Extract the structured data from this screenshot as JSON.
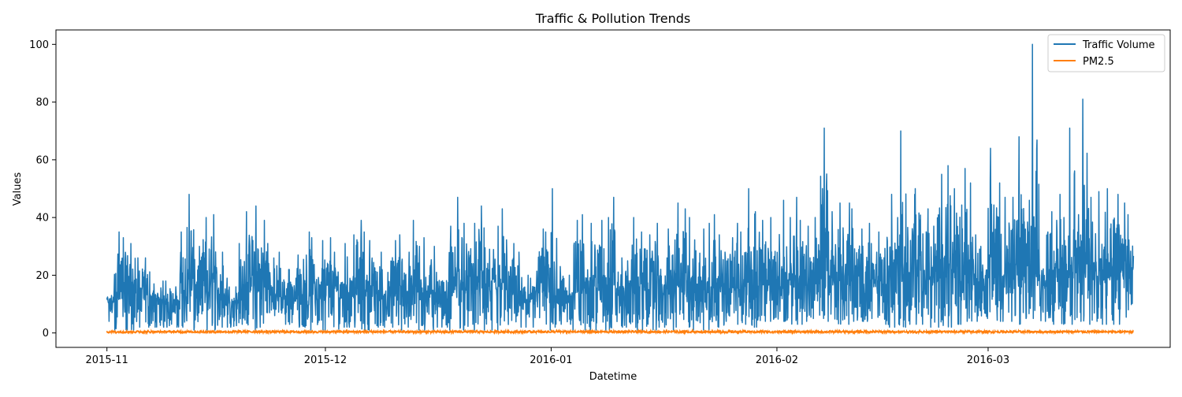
{
  "chart_data": {
    "type": "line",
    "title": "Traffic & Pollution Trends",
    "xlabel": "Datetime",
    "ylabel": "Values",
    "x_range": [
      "2015-10-25",
      "2016-03-26"
    ],
    "ylim": [
      -5,
      105
    ],
    "x_ticks": [
      {
        "date": "2015-11-01",
        "label": "2015-11"
      },
      {
        "date": "2015-12-01",
        "label": "2015-12"
      },
      {
        "date": "2016-01-01",
        "label": "2016-01"
      },
      {
        "date": "2016-02-01",
        "label": "2016-02"
      },
      {
        "date": "2016-03-01",
        "label": "2016-03"
      }
    ],
    "y_ticks": [
      0,
      20,
      40,
      60,
      80,
      100
    ],
    "grid": false,
    "legend_position": "top-right",
    "series": [
      {
        "name": "Traffic Volume",
        "color": "#1f77b4",
        "x": [
          "2015-11-01",
          "2015-11-02",
          "2015-11-03",
          "2015-11-04",
          "2015-11-05",
          "2015-11-06",
          "2015-11-07",
          "2015-11-08",
          "2015-11-09",
          "2015-11-10",
          "2015-11-11",
          "2015-11-12",
          "2015-11-13",
          "2015-11-14",
          "2015-11-15",
          "2015-11-16",
          "2015-11-17",
          "2015-11-18",
          "2015-11-19",
          "2015-11-20",
          "2015-11-21",
          "2015-11-22",
          "2015-11-23",
          "2015-11-24",
          "2015-11-25",
          "2015-11-26",
          "2015-11-27",
          "2015-11-28",
          "2015-11-29",
          "2015-11-30",
          "2015-12-01",
          "2015-12-02",
          "2015-12-03",
          "2015-12-04",
          "2015-12-05",
          "2015-12-06",
          "2015-12-07",
          "2015-12-08",
          "2015-12-09",
          "2015-12-10",
          "2015-12-11",
          "2015-12-12",
          "2015-12-13",
          "2015-12-14",
          "2015-12-15",
          "2015-12-16",
          "2015-12-17",
          "2015-12-18",
          "2015-12-19",
          "2015-12-20",
          "2015-12-21",
          "2015-12-22",
          "2015-12-23",
          "2015-12-24",
          "2015-12-25",
          "2015-12-26",
          "2015-12-27",
          "2015-12-28",
          "2015-12-29",
          "2015-12-30",
          "2015-12-31",
          "2016-01-01",
          "2016-01-02",
          "2016-01-03",
          "2016-01-04",
          "2016-01-05",
          "2016-01-06",
          "2016-01-07",
          "2016-01-08",
          "2016-01-09",
          "2016-01-10",
          "2016-01-11",
          "2016-01-12",
          "2016-01-13",
          "2016-01-14",
          "2016-01-15",
          "2016-01-16",
          "2016-01-17",
          "2016-01-18",
          "2016-01-19",
          "2016-01-20",
          "2016-01-21",
          "2016-01-22",
          "2016-01-23",
          "2016-01-24",
          "2016-01-25",
          "2016-01-26",
          "2016-01-27",
          "2016-01-28",
          "2016-01-29",
          "2016-01-30",
          "2016-01-31",
          "2016-02-01",
          "2016-02-02",
          "2016-02-03",
          "2016-02-04",
          "2016-02-05",
          "2016-02-06",
          "2016-02-07",
          "2016-02-08",
          "2016-02-09",
          "2016-02-10",
          "2016-02-11",
          "2016-02-12",
          "2016-02-13",
          "2016-02-14",
          "2016-02-15",
          "2016-02-16",
          "2016-02-17",
          "2016-02-18",
          "2016-02-19",
          "2016-02-20",
          "2016-02-21",
          "2016-02-22",
          "2016-02-23",
          "2016-02-24",
          "2016-02-25",
          "2016-02-26",
          "2016-02-27",
          "2016-02-28",
          "2016-02-29",
          "2016-03-01",
          "2016-03-02",
          "2016-03-03",
          "2016-03-04",
          "2016-03-05",
          "2016-03-06",
          "2016-03-07",
          "2016-03-08",
          "2016-03-09",
          "2016-03-10",
          "2016-03-11",
          "2016-03-12",
          "2016-03-13",
          "2016-03-14",
          "2016-03-15",
          "2016-03-16",
          "2016-03-17",
          "2016-03-18",
          "2016-03-19",
          "2016-03-20"
        ],
        "daily_max": [
          13,
          35,
          33,
          31,
          26,
          26,
          17,
          18,
          18,
          16,
          35,
          48,
          30,
          40,
          41,
          28,
          19,
          16,
          31,
          42,
          44,
          39,
          31,
          28,
          22,
          22,
          27,
          35,
          33,
          32,
          33,
          28,
          31,
          34,
          39,
          35,
          32,
          28,
          21,
          32,
          34,
          28,
          39,
          33,
          30,
          21,
          21,
          37,
          47,
          38,
          38,
          44,
          29,
          37,
          43,
          31,
          28,
          20,
          19,
          36,
          35,
          50,
          23,
          20,
          39,
          41,
          38,
          39,
          40,
          47,
          26,
          25,
          40,
          35,
          34,
          38,
          26,
          36,
          45,
          43,
          40,
          36,
          38,
          41,
          34,
          33,
          38,
          35,
          50,
          42,
          39,
          40,
          46,
          40,
          47,
          39,
          37,
          40,
          71,
          42,
          45,
          45,
          43,
          36,
          38,
          28,
          35,
          48,
          40,
          70,
          48,
          50,
          43,
          37,
          55,
          58,
          50,
          57,
          52,
          34,
          30,
          64,
          52,
          47,
          47,
          68,
          46,
          100,
          30,
          42,
          48,
          40,
          71,
          41,
          81,
          47,
          49,
          50,
          48,
          45,
          41
        ],
        "daily_min": [
          4,
          1,
          1,
          1,
          2,
          2,
          2,
          2,
          2,
          2,
          2,
          1,
          2,
          1,
          1,
          2,
          2,
          2,
          3,
          2,
          1,
          2,
          7,
          6,
          3,
          3,
          2,
          2,
          1,
          1,
          2,
          1,
          2,
          2,
          2,
          1,
          1,
          2,
          2,
          2,
          1,
          2,
          1,
          1,
          1,
          2,
          2,
          1,
          1,
          1,
          1,
          1,
          1,
          1,
          1,
          1,
          2,
          2,
          2,
          2,
          1,
          2,
          3,
          3,
          1,
          1,
          1,
          1,
          1,
          1,
          2,
          2,
          1,
          1,
          1,
          1,
          2,
          1,
          2,
          2,
          1,
          1,
          1,
          2,
          2,
          4,
          3,
          3,
          2,
          2,
          4,
          4,
          4,
          4,
          3,
          3,
          4,
          5,
          5,
          4,
          3,
          3,
          4,
          4,
          4,
          5,
          3,
          2,
          2,
          2,
          3,
          3,
          3,
          2,
          2,
          2,
          3,
          3,
          4,
          4,
          5,
          5,
          4,
          4,
          4,
          3,
          5,
          5,
          4,
          4,
          3,
          3,
          3,
          4,
          3,
          4,
          3,
          3,
          3,
          3,
          8
        ],
        "daily_mean": [
          10,
          14,
          13,
          12,
          11,
          11,
          9,
          9,
          9,
          9,
          12,
          14,
          12,
          13,
          13,
          12,
          10,
          9,
          11,
          13,
          14,
          13,
          13,
          12,
          11,
          11,
          11,
          12,
          12,
          12,
          12,
          11,
          12,
          12,
          13,
          12,
          12,
          11,
          10,
          12,
          12,
          11,
          13,
          12,
          12,
          10,
          10,
          13,
          14,
          13,
          13,
          14,
          11,
          13,
          13,
          12,
          11,
          10,
          10,
          12,
          12,
          13,
          10,
          10,
          12,
          13,
          13,
          13,
          13,
          14,
          11,
          11,
          13,
          13,
          13,
          13,
          12,
          13,
          14,
          14,
          13,
          13,
          13,
          13,
          13,
          13,
          14,
          13,
          15,
          14,
          14,
          14,
          15,
          15,
          15,
          15,
          14,
          15,
          16,
          15,
          16,
          16,
          16,
          15,
          15,
          14,
          15,
          16,
          16,
          17,
          16,
          17,
          17,
          16,
          18,
          18,
          18,
          18,
          18,
          16,
          16,
          18,
          18,
          17,
          17,
          18,
          17,
          19,
          15,
          16,
          17,
          17,
          18,
          17,
          19,
          17,
          18,
          18,
          18,
          17,
          17
        ]
      },
      {
        "name": "PM2.5",
        "color": "#ff7f0e",
        "level": 0.3,
        "range": [
          0,
          0.8
        ]
      }
    ]
  }
}
